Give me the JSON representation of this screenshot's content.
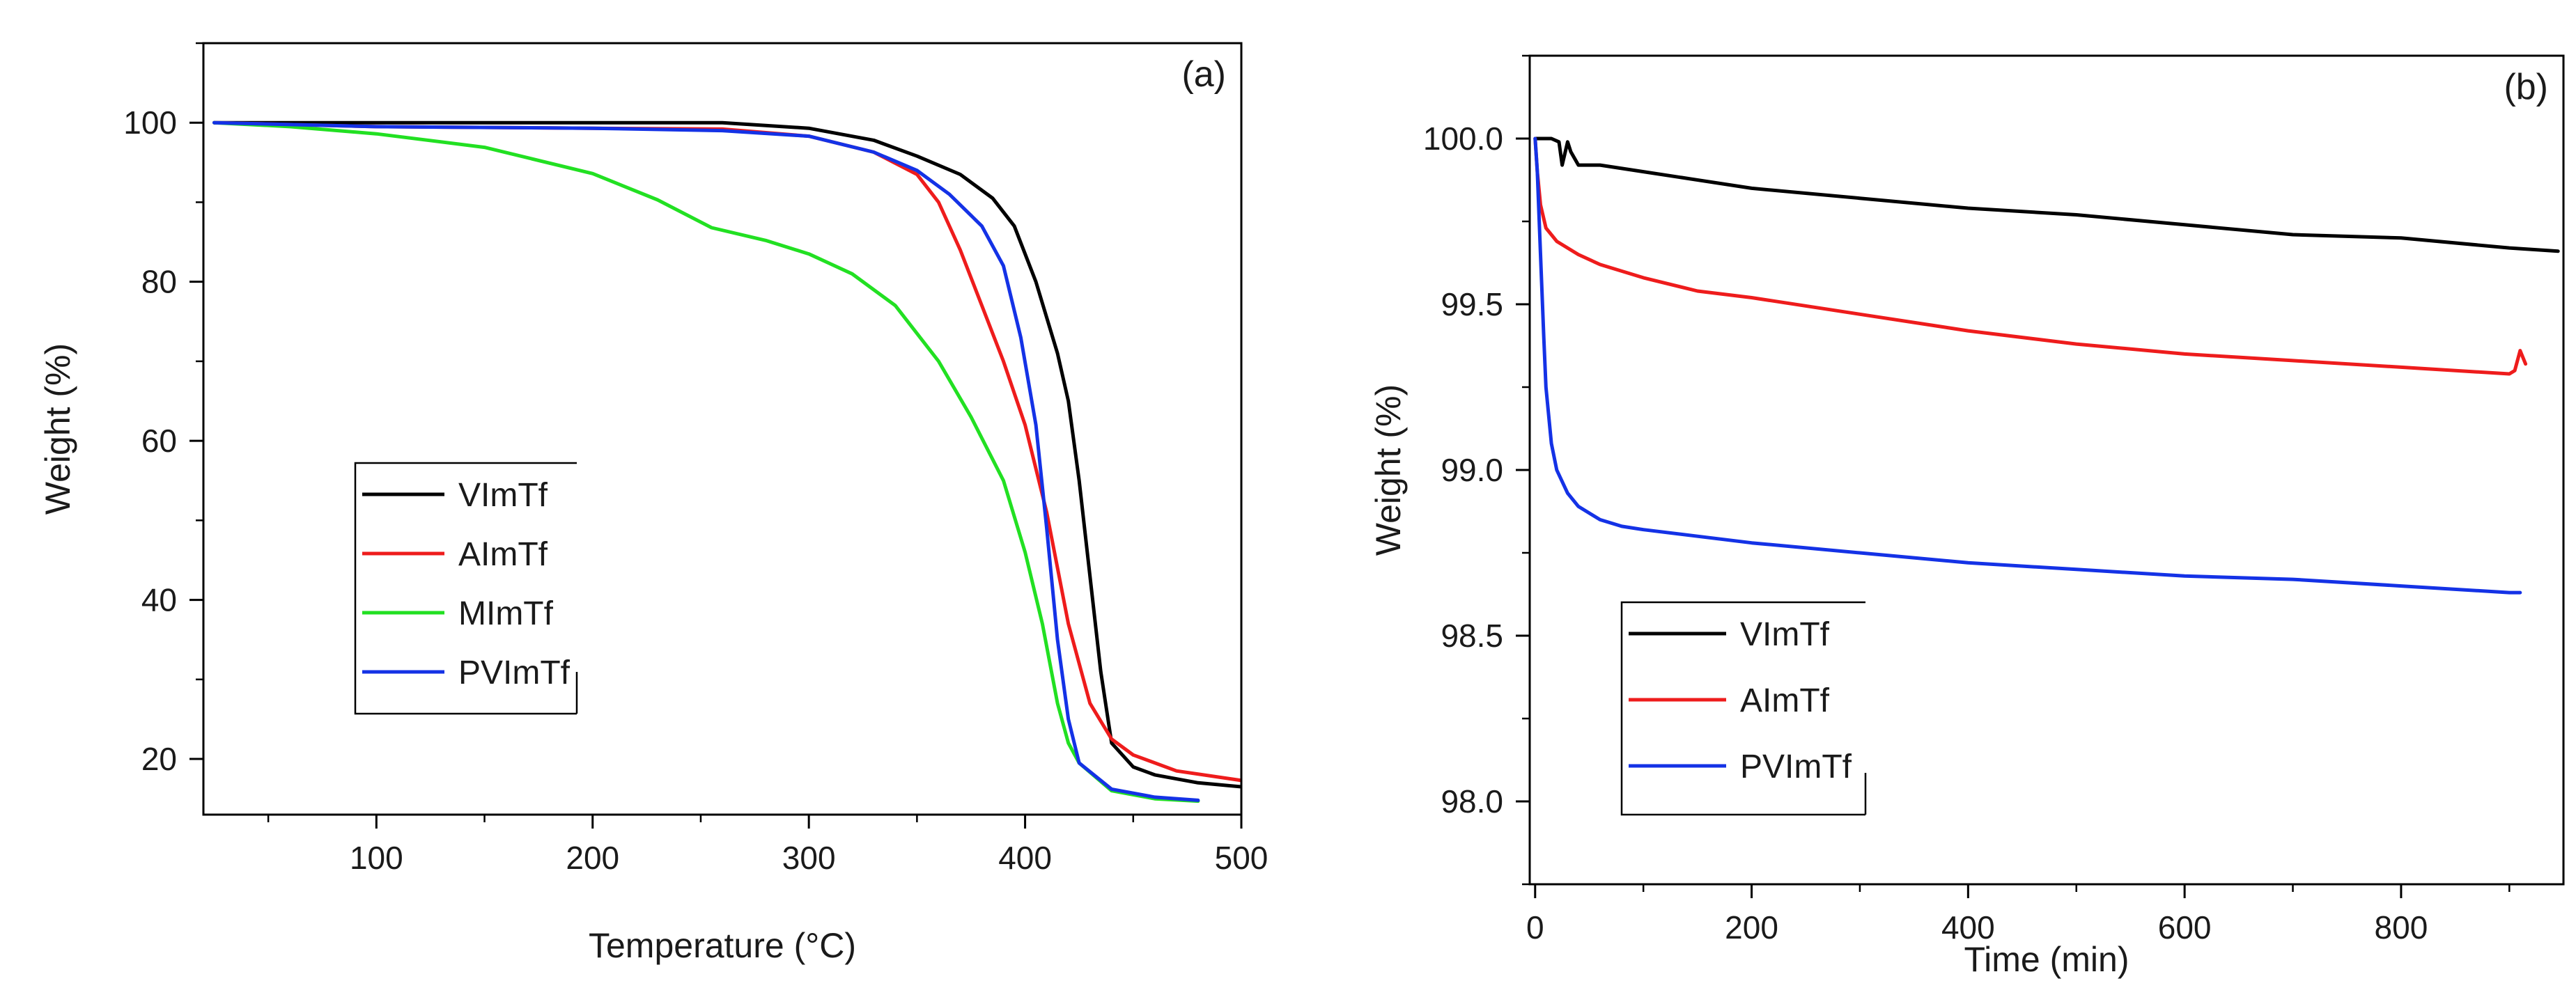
{
  "chart_data": [
    {
      "panel": "(a)",
      "type": "line",
      "xlabel": "Temperature (°C)",
      "ylabel": "Weight (%)",
      "xlim": [
        20,
        500
      ],
      "ylim": [
        13,
        110
      ],
      "xticks": [
        100,
        200,
        300,
        400,
        500
      ],
      "yticks": [
        20,
        40,
        60,
        80,
        100
      ],
      "legend_position": "center-left",
      "series": [
        {
          "name": "VImTf",
          "color": "#000000",
          "x": [
            25,
            100,
            200,
            260,
            300,
            330,
            350,
            370,
            385,
            395,
            405,
            415,
            420,
            425,
            430,
            435,
            440,
            450,
            460,
            480,
            500
          ],
          "y": [
            100,
            100,
            100,
            100,
            99.3,
            97.8,
            95.8,
            93.5,
            90.5,
            87,
            80,
            71,
            65,
            55,
            43,
            31,
            22,
            19,
            18,
            17,
            16.5
          ]
        },
        {
          "name": "AImTf",
          "color": "#ee1c1c",
          "x": [
            25,
            100,
            200,
            260,
            300,
            330,
            350,
            360,
            370,
            380,
            390,
            400,
            410,
            420,
            430,
            440,
            450,
            470,
            500
          ],
          "y": [
            100,
            99.5,
            99.3,
            99.2,
            98.3,
            96.3,
            93.5,
            90,
            84,
            77,
            70,
            62,
            51,
            37,
            27,
            22.5,
            20.5,
            18.5,
            17.3
          ]
        },
        {
          "name": "MImTf",
          "color": "#22e022",
          "x": [
            25,
            60,
            100,
            150,
            200,
            230,
            255,
            280,
            300,
            320,
            340,
            360,
            375,
            390,
            400,
            408,
            415,
            420,
            425,
            440,
            460,
            480
          ],
          "y": [
            100,
            99.5,
            98.6,
            96.9,
            93.6,
            90.3,
            86.8,
            85.2,
            83.5,
            81,
            77,
            70,
            63,
            55,
            46,
            37,
            27,
            22,
            19.5,
            16,
            15,
            14.7
          ]
        },
        {
          "name": "PVImTf",
          "color": "#1432e6",
          "x": [
            25,
            100,
            200,
            260,
            300,
            330,
            350,
            365,
            380,
            390,
            398,
            405,
            410,
            415,
            420,
            425,
            440,
            460,
            480
          ],
          "y": [
            100,
            99.5,
            99.3,
            99,
            98.3,
            96.3,
            94,
            91,
            87,
            82,
            73,
            62,
            49,
            35,
            25,
            19.5,
            16.2,
            15.2,
            14.8
          ]
        }
      ]
    },
    {
      "panel": "(b)",
      "type": "line",
      "xlabel": "Time (min)",
      "ylabel": "Weight (%)",
      "xlim": [
        -5,
        950
      ],
      "ylim": [
        97.75,
        100.25
      ],
      "xticks": [
        0,
        200,
        400,
        600,
        800
      ],
      "yticks": [
        98.0,
        98.5,
        99.0,
        99.5,
        100.0
      ],
      "legend_position": "bottom-left",
      "series": [
        {
          "name": "VImTf",
          "color": "#000000",
          "x": [
            0,
            15,
            22,
            25,
            30,
            33,
            40,
            60,
            100,
            200,
            300,
            400,
            500,
            600,
            700,
            800,
            900,
            945
          ],
          "y": [
            100.0,
            100.0,
            99.99,
            99.92,
            99.99,
            99.96,
            99.92,
            99.92,
            99.9,
            99.85,
            99.82,
            99.79,
            99.77,
            99.74,
            99.71,
            99.7,
            99.67,
            99.66
          ]
        },
        {
          "name": "AImTf",
          "color": "#ee1c1c",
          "x": [
            0,
            2,
            5,
            10,
            20,
            40,
            60,
            100,
            150,
            200,
            300,
            400,
            500,
            600,
            700,
            800,
            900,
            905,
            910,
            915
          ],
          "y": [
            100.0,
            99.9,
            99.8,
            99.73,
            99.69,
            99.65,
            99.62,
            99.58,
            99.54,
            99.52,
            99.47,
            99.42,
            99.38,
            99.35,
            99.33,
            99.31,
            99.29,
            99.3,
            99.36,
            99.32
          ]
        },
        {
          "name": "PVImTf",
          "color": "#1432e6",
          "x": [
            0,
            2,
            5,
            8,
            10,
            15,
            20,
            30,
            40,
            60,
            80,
            100,
            150,
            200,
            300,
            400,
            500,
            600,
            700,
            800,
            900,
            910
          ],
          "y": [
            100.0,
            99.9,
            99.65,
            99.4,
            99.25,
            99.08,
            99.0,
            98.93,
            98.89,
            98.85,
            98.83,
            98.82,
            98.8,
            98.78,
            98.75,
            98.72,
            98.7,
            98.68,
            98.67,
            98.65,
            98.63,
            98.63
          ]
        }
      ]
    }
  ]
}
